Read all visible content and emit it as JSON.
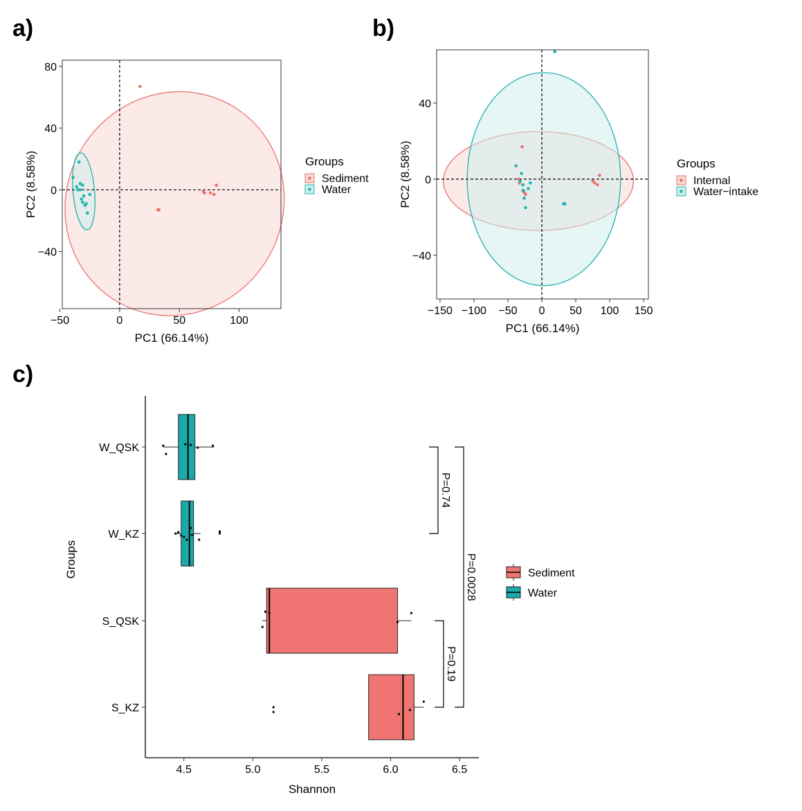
{
  "panel_labels": [
    "a)",
    "b)",
    "c)"
  ],
  "colors": {
    "red": "#e8736c",
    "teal": "#1fb3b0",
    "red_fill": "#f9d9d5",
    "teal_fill": "#cfeeed",
    "box_red": "#f07572",
    "box_teal": "#1aaaa8"
  },
  "chart_data": [
    {
      "type": "scatter",
      "panel": "a)",
      "title": "",
      "xlabel": "PC1 (66.14%)",
      "ylabel": "PC2 (8.58%)",
      "xlim": [
        -48,
        135
      ],
      "ylim": [
        -77,
        84
      ],
      "xticks": [
        -50,
        0,
        50,
        100
      ],
      "yticks": [
        -40,
        0,
        40,
        80
      ],
      "xtick_labels": [
        "−50",
        "0",
        "50",
        "100"
      ],
      "ytick_labels": [
        "−40",
        "0",
        "40",
        "80"
      ],
      "legend_title": "Groups",
      "series": [
        {
          "name": "Sediment",
          "color": "#e8736c",
          "points": [
            [
              17,
              67
            ],
            [
              32,
              -13
            ],
            [
              33,
              -13
            ],
            [
              70,
              -1
            ],
            [
              71,
              -2
            ],
            [
              76,
              -2
            ],
            [
              79,
              -3
            ],
            [
              81,
              3
            ]
          ],
          "ellipse": {
            "cx": 46,
            "cy": -9,
            "rx": 95,
            "ry": 70,
            "angle_deg": -58
          }
        },
        {
          "name": "Water",
          "color": "#1fb3b0",
          "points": [
            [
              -39,
              8
            ],
            [
              -36,
              2
            ],
            [
              -34,
              18
            ],
            [
              -33,
              4
            ],
            [
              -32,
              -6
            ],
            [
              -31,
              -8
            ],
            [
              -30,
              -4
            ],
            [
              -29,
              -10
            ],
            [
              -28,
              -9
            ],
            [
              -27,
              -15
            ],
            [
              -25,
              -3
            ],
            [
              -33,
              0
            ],
            [
              -31,
              3
            ],
            [
              -35,
              0
            ]
          ],
          "ellipse": {
            "cx": -30,
            "cy": -1,
            "rx": 9,
            "ry": 25,
            "angle_deg": -5
          }
        }
      ]
    },
    {
      "type": "scatter",
      "panel": "b)",
      "title": "",
      "xlabel": "PC1 (66.14%)",
      "ylabel": "PC2 (8.58%)",
      "xlim": [
        -155,
        157
      ],
      "ylim": [
        -63,
        68
      ],
      "xticks": [
        -150,
        -100,
        -50,
        0,
        50,
        100,
        150
      ],
      "yticks": [
        -40,
        0,
        40
      ],
      "xtick_labels": [
        "−150",
        "−100",
        "−50",
        "0",
        "50",
        "100",
        "150"
      ],
      "ytick_labels": [
        "−40",
        "0",
        "40"
      ],
      "legend_title": "Groups",
      "series": [
        {
          "name": "Internal",
          "color": "#e8736c",
          "points": [
            [
              -29,
              17
            ],
            [
              -34,
              0
            ],
            [
              -33,
              -2
            ],
            [
              -28,
              -6
            ],
            [
              -26,
              -7
            ],
            [
              -24,
              -8
            ],
            [
              75,
              -1
            ],
            [
              78,
              -2
            ],
            [
              82,
              -3
            ],
            [
              85,
              2
            ]
          ],
          "ellipse": {
            "cx": -5,
            "cy": -1,
            "rx": 140,
            "ry": 26,
            "angle_deg": 0
          }
        },
        {
          "name": "Water−intake",
          "color": "#1fb3b0",
          "points": [
            [
              19,
              67
            ],
            [
              -38,
              7
            ],
            [
              -30,
              3
            ],
            [
              -28,
              -3
            ],
            [
              -26,
              -10
            ],
            [
              -24,
              -15
            ],
            [
              -20,
              -5
            ],
            [
              -17,
              -2
            ],
            [
              -27,
              -6
            ],
            [
              32,
              -13
            ],
            [
              34,
              -13
            ],
            [
              -32,
              -1
            ]
          ],
          "ellipse": {
            "cx": 3,
            "cy": 0,
            "rx": 113,
            "ry": 56,
            "angle_deg": 0
          }
        }
      ]
    },
    {
      "type": "box",
      "panel": "c)",
      "title": "",
      "xlabel": "Shannon",
      "ylabel": "Groups",
      "xlim": [
        4.22,
        6.64
      ],
      "xticks": [
        4.5,
        5.0,
        5.5,
        6.0,
        6.5
      ],
      "xtick_labels": [
        "4.5",
        "5.0",
        "5.5",
        "6.0",
        "6.5"
      ],
      "categories": [
        "W_QSK",
        "W_KZ",
        "S_QSK",
        "S_KZ"
      ],
      "legend_title": "",
      "legend": [
        "Sediment",
        "Water"
      ],
      "boxes": [
        {
          "label": "W_QSK",
          "group": "Water",
          "whisker_min": 4.35,
          "q1": 4.46,
          "median": 4.53,
          "q3": 4.58,
          "whisker_max": 4.72,
          "points": [
            [
              4.35,
              -2
            ],
            [
              4.37,
              10
            ],
            [
              4.51,
              -4
            ],
            [
              4.55,
              -3
            ],
            [
              4.6,
              1
            ],
            [
              4.71,
              -2
            ]
          ]
        },
        {
          "label": "W_KZ",
          "group": "Water",
          "whisker_min": 4.43,
          "q1": 4.48,
          "median": 4.54,
          "q3": 4.57,
          "whisker_max": 4.62,
          "points": [
            [
              4.44,
              0
            ],
            [
              4.46,
              -2
            ],
            [
              4.48,
              3
            ],
            [
              4.5,
              5
            ],
            [
              4.52,
              9
            ],
            [
              4.55,
              -8
            ],
            [
              4.56,
              2
            ],
            [
              4.61,
              9
            ],
            [
              4.76,
              -3
            ],
            [
              4.76,
              0
            ]
          ]
        },
        {
          "label": "S_QSK",
          "group": "Sediment",
          "whisker_min": 5.07,
          "q1": 5.1,
          "median": 5.12,
          "q3": 6.05,
          "whisker_max": 6.15,
          "points": [
            [
              5.07,
              9
            ],
            [
              5.09,
              -13
            ],
            [
              5.12,
              -11
            ],
            [
              6.05,
              2
            ],
            [
              6.15,
              -11
            ]
          ]
        },
        {
          "label": "S_KZ",
          "group": "Sediment",
          "whisker_min": 5.84,
          "q1": 5.84,
          "median": 6.09,
          "q3": 6.17,
          "whisker_max": 6.24,
          "points": [
            [
              5.15,
              0
            ],
            [
              5.15,
              7
            ],
            [
              6.06,
              10
            ],
            [
              6.14,
              4
            ],
            [
              6.24,
              -8
            ]
          ]
        }
      ],
      "annotations": [
        {
          "text": "P=0.74",
          "from": "W_QSK",
          "to": "W_KZ"
        },
        {
          "text": "P=0.0028",
          "from": "W_QSK",
          "to": "S_KZ"
        },
        {
          "text": "P=0.19",
          "from": "S_QSK",
          "to": "S_KZ"
        }
      ]
    }
  ]
}
